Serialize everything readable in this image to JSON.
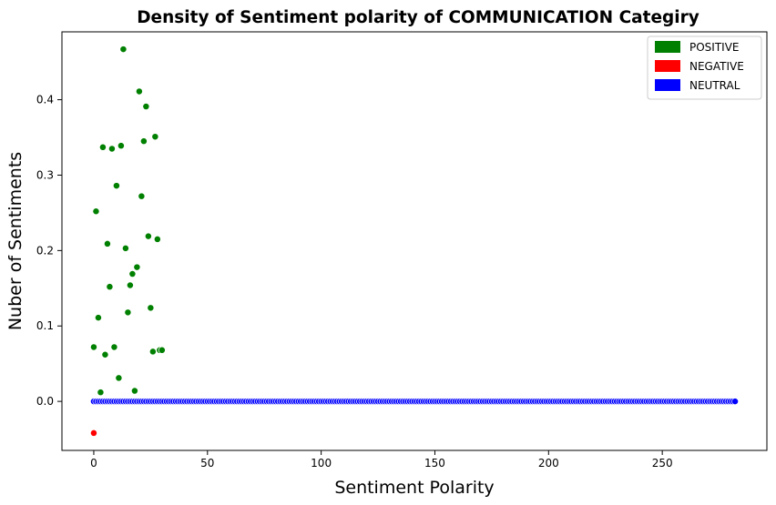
{
  "chart_data": {
    "type": "scatter",
    "title": "Density of Sentiment polarity of COMMUNICATION Categiry",
    "xlabel": "Sentiment Polarity",
    "ylabel": "Nuber of Sentiments",
    "xlim": [
      -14,
      296
    ],
    "ylim": [
      -0.065,
      0.49
    ],
    "xticks": [
      0,
      50,
      100,
      150,
      200,
      250
    ],
    "yticks": [
      0.0,
      0.1,
      0.2,
      0.3,
      0.4
    ],
    "ytick_labels": [
      "0.0",
      "0.1",
      "0.2",
      "0.3",
      "0.4"
    ],
    "legend": {
      "placement": "top-right",
      "entries": [
        {
          "label": "POSITIVE",
          "color": "#008000"
        },
        {
          "label": "NEGATIVE",
          "color": "#ff0000"
        },
        {
          "label": "NEUTRAL",
          "color": "#0000ff"
        }
      ]
    },
    "series": [
      {
        "name": "POSITIVE",
        "color": "#008000",
        "points": [
          [
            0,
            0.072
          ],
          [
            1,
            0.252
          ],
          [
            2,
            0.111
          ],
          [
            3,
            0.012
          ],
          [
            4,
            0.337
          ],
          [
            5,
            0.062
          ],
          [
            6,
            0.209
          ],
          [
            7,
            0.152
          ],
          [
            8,
            0.335
          ],
          [
            9,
            0.072
          ],
          [
            10,
            0.286
          ],
          [
            11,
            0.031
          ],
          [
            12,
            0.339
          ],
          [
            13,
            0.467
          ],
          [
            14,
            0.203
          ],
          [
            15,
            0.118
          ],
          [
            16,
            0.154
          ],
          [
            17,
            0.169
          ],
          [
            18,
            0.014
          ],
          [
            19,
            0.178
          ],
          [
            20,
            0.411
          ],
          [
            21,
            0.272
          ],
          [
            22,
            0.345
          ],
          [
            23,
            0.391
          ],
          [
            24,
            0.219
          ],
          [
            25,
            0.124
          ],
          [
            26,
            0.066
          ],
          [
            27,
            0.351
          ],
          [
            28,
            0.215
          ],
          [
            29,
            0.068
          ],
          [
            30,
            0.068
          ]
        ]
      },
      {
        "name": "NEGATIVE",
        "color": "#ff0000",
        "points": [
          [
            0,
            -0.042
          ]
        ]
      },
      {
        "name": "NEUTRAL",
        "color": "#0000ff",
        "x_range": [
          0,
          282
        ],
        "y": 0.0
      }
    ]
  }
}
